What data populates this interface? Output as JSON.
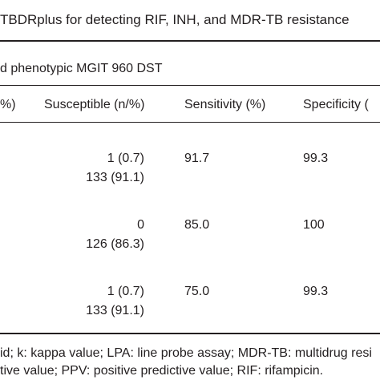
{
  "title": "TBDRplus for detecting RIF, INH, and MDR-TB resistance",
  "subtitle": "d phenotypic MGIT 960 DST",
  "table": {
    "header": [
      "%)",
      "Susceptible (n/%)",
      "Sensitivity (%)",
      "Specificity ("
    ],
    "rows": [
      {
        "susceptible": [
          "1 (0.7)",
          "133 (91.1)"
        ],
        "sensitivity": "91.7",
        "specificity": "99.3"
      },
      {
        "susceptible": [
          "0",
          "126 (86.3)"
        ],
        "sensitivity": "85.0",
        "specificity": "100"
      },
      {
        "susceptible": [
          "1 (0.7)",
          "133 (91.1)"
        ],
        "sensitivity": "75.0",
        "specificity": "99.3"
      }
    ]
  },
  "footnotes": [
    "id; k: kappa value; LPA: line probe assay; MDR-TB: multidrug resi",
    "tive value; PPV: positive predictive value; RIF: rifampicin."
  ]
}
